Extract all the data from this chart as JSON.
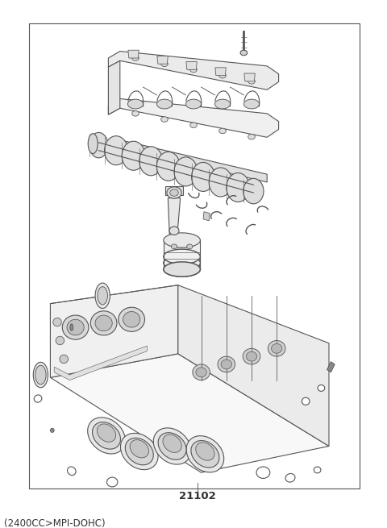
{
  "title_top_left": "(2400CC>MPI-DOHC)",
  "part_number": "21102",
  "background_color": "#ffffff",
  "border_color": "#555555",
  "line_color": "#555555",
  "text_color": "#333333",
  "title_fontsize": 8.5,
  "part_num_fontsize": 9.5,
  "figsize": [
    4.8,
    6.55
  ],
  "dpi": 100
}
